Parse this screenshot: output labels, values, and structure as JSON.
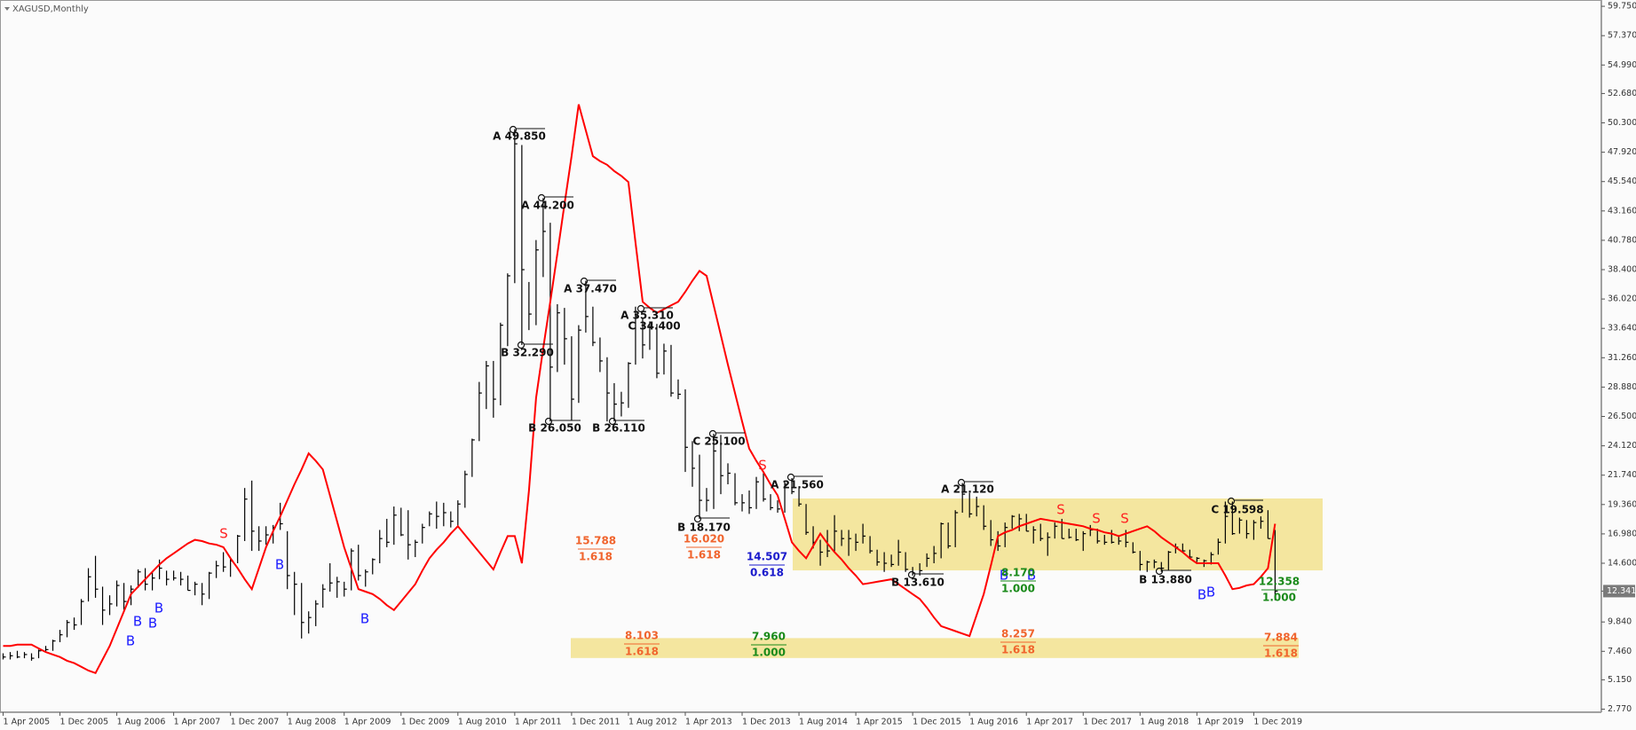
{
  "chart_data": {
    "type": "ohlc",
    "title": "XAGUSD,Monthly",
    "color": "#000000",
    "ylim": [
      2.52,
      60.26
    ],
    "grid": false,
    "yticks": [
      {
        "value": 59.75,
        "label": "59.750"
      },
      {
        "value": 57.37,
        "label": "57.370"
      },
      {
        "value": 54.99,
        "label": "54.990"
      },
      {
        "value": 52.68,
        "label": "52.680"
      },
      {
        "value": 50.3,
        "label": "50.300"
      },
      {
        "value": 47.92,
        "label": "47.920"
      },
      {
        "value": 45.54,
        "label": "45.540"
      },
      {
        "value": 43.16,
        "label": "43.160"
      },
      {
        "value": 40.78,
        "label": "40.780"
      },
      {
        "value": 38.4,
        "label": "38.400"
      },
      {
        "value": 36.02,
        "label": "36.020"
      },
      {
        "value": 33.64,
        "label": "33.640"
      },
      {
        "value": 31.26,
        "label": "31.260"
      },
      {
        "value": 28.88,
        "label": "28.880"
      },
      {
        "value": 26.5,
        "label": "26.500"
      },
      {
        "value": 24.12,
        "label": "24.120"
      },
      {
        "value": 21.74,
        "label": "21.740"
      },
      {
        "value": 19.36,
        "label": "19.360"
      },
      {
        "value": 16.98,
        "label": "16.980"
      },
      {
        "value": 14.6,
        "label": "14.600"
      },
      {
        "value": 9.84,
        "label": "9.840"
      },
      {
        "value": 7.46,
        "label": "7.460"
      },
      {
        "value": 5.15,
        "label": "5.150"
      },
      {
        "value": 2.77,
        "label": "2.770"
      }
    ],
    "last_price": 12.341,
    "categories": [
      "1 Apr 2005",
      null,
      null,
      null,
      null,
      null,
      null,
      null,
      "1 Dec 2005",
      null,
      null,
      null,
      null,
      null,
      null,
      null,
      "1 Aug 2006",
      null,
      null,
      null,
      null,
      null,
      null,
      null,
      "1 Apr 2007",
      null,
      null,
      null,
      null,
      null,
      null,
      null,
      "1 Dec 2007",
      null,
      null,
      null,
      null,
      null,
      null,
      null,
      "1 Aug 2008",
      null,
      null,
      null,
      null,
      null,
      null,
      null,
      "1 Apr 2009",
      null,
      null,
      null,
      null,
      null,
      null,
      null,
      "1 Dec 2009",
      null,
      null,
      null,
      null,
      null,
      null,
      null,
      "1 Aug 2010",
      null,
      null,
      null,
      null,
      null,
      null,
      null,
      "1 Apr 2011",
      null,
      null,
      null,
      null,
      null,
      null,
      null,
      "1 Dec 2011",
      null,
      null,
      null,
      null,
      null,
      null,
      null,
      "1 Aug 2012",
      null,
      null,
      null,
      null,
      null,
      null,
      null,
      "1 Apr 2013",
      null,
      null,
      null,
      null,
      null,
      null,
      null,
      "1 Dec 2013",
      null,
      null,
      null,
      null,
      null,
      null,
      null,
      "1 Aug 2014",
      null,
      null,
      null,
      null,
      null,
      null,
      null,
      "1 Apr 2015",
      null,
      null,
      null,
      null,
      null,
      null,
      null,
      "1 Dec 2015",
      null,
      null,
      null,
      null,
      null,
      null,
      null,
      "1 Aug 2016",
      null,
      null,
      null,
      null,
      null,
      null,
      null,
      "1 Apr 2017",
      null,
      null,
      null,
      null,
      null,
      null,
      null,
      "1 Dec 2017",
      null,
      null,
      null,
      null,
      null,
      null,
      null,
      "1 Aug 2018",
      null,
      null,
      null,
      null,
      null,
      null,
      null,
      "1 Apr 2019",
      null,
      null,
      null,
      null,
      null,
      null,
      null,
      "1 Dec 2019",
      null,
      null,
      null
    ],
    "high": [
      7.3,
      7.4,
      7.5,
      7.4,
      7.3,
      7.6,
      7.9,
      8.4,
      9.2,
      10.0,
      10.2,
      11.7,
      14.2,
      15.2,
      12.7,
      12.0,
      13.2,
      13.0,
      12.8,
      14.1,
      14.2,
      13.9,
      14.9,
      14.0,
      14.0,
      13.9,
      13.6,
      13.1,
      13.0,
      13.9,
      14.8,
      15.5,
      15.0,
      16.9,
      20.7,
      21.3,
      17.6,
      17.6,
      17.7,
      19.5,
      17.2,
      13.9,
      13.0,
      10.7,
      11.6,
      12.9,
      14.6,
      13.5,
      13.1,
      15.8,
      16.1,
      14.1,
      15.0,
      17.3,
      18.2,
      19.2,
      19.1,
      18.9,
      16.5,
      17.8,
      18.8,
      19.6,
      19.5,
      18.8,
      19.7,
      22.1,
      24.7,
      29.3,
      31.0,
      31.0,
      34.1,
      38.1,
      49.8,
      48.5,
      37.4,
      40.8,
      44.2,
      42.2,
      35.6,
      35.3,
      33.0,
      33.9,
      37.5,
      35.4,
      32.9,
      31.3,
      29.2,
      28.5,
      30.9,
      35.4,
      34.5,
      34.2,
      34.0,
      32.4,
      32.3,
      29.5,
      28.7,
      24.5,
      23.4,
      20.7,
      25.1,
      25.0,
      22.7,
      21.9,
      20.2,
      20.5,
      21.6,
      21.9,
      20.2,
      19.7,
      21.2,
      21.5,
      20.7,
      19.4,
      17.6,
      16.5,
      17.3,
      18.5,
      17.3,
      17.3,
      17.0,
      17.8,
      16.8,
      15.7,
      15.5,
      15.3,
      16.5,
      15.5,
      14.3,
      14.6,
      15.4,
      16.0,
      17.9,
      17.9,
      18.9,
      21.1,
      20.3,
      20.0,
      19.3,
      18.1,
      17.2,
      17.9,
      18.5,
      18.6,
      18.6,
      17.6,
      17.8,
      17.1,
      17.9,
      18.2,
      17.4,
      17.4,
      17.2,
      17.7,
      17.4,
      16.9,
      17.3,
      16.8,
      17.3,
      16.3,
      15.6,
      14.8,
      14.9,
      14.7,
      15.6,
      16.2,
      16.2,
      15.7,
      15.1,
      14.9,
      15.5,
      16.6,
      19.6,
      19.6,
      18.3,
      18.1,
      18.1,
      18.4,
      18.9,
      17.3
    ],
    "low": [
      6.8,
      6.8,
      6.9,
      6.9,
      6.7,
      6.9,
      7.4,
      7.5,
      8.2,
      8.6,
      9.2,
      9.6,
      11.5,
      11.8,
      9.6,
      10.4,
      11.1,
      10.8,
      11.2,
      12.6,
      12.4,
      12.4,
      13.3,
      12.8,
      13.2,
      12.8,
      12.4,
      12.0,
      11.2,
      11.7,
      13.4,
      13.9,
      13.5,
      14.6,
      16.4,
      15.6,
      15.6,
      16.1,
      16.2,
      17.3,
      12.5,
      10.4,
      8.5,
      8.9,
      9.5,
      11.0,
      12.3,
      11.8,
      11.9,
      12.4,
      13.2,
      12.7,
      13.7,
      14.6,
      15.9,
      16.1,
      16.8,
      14.9,
      15.1,
      16.2,
      17.6,
      17.4,
      17.6,
      17.5,
      17.6,
      19.1,
      21.6,
      24.5,
      27.1,
      26.4,
      27.4,
      32.2,
      37.3,
      32.3,
      33.5,
      33.9,
      37.8,
      26.1,
      30.1,
      30.7,
      26.2,
      27.6,
      33.3,
      32.2,
      30.1,
      26.1,
      26.1,
      26.5,
      27.2,
      30.7,
      31.2,
      31.9,
      29.6,
      29.9,
      28.1,
      27.9,
      22.0,
      20.8,
      18.2,
      18.8,
      19.0,
      20.2,
      21.0,
      19.3,
      18.8,
      18.6,
      19.0,
      19.6,
      18.9,
      18.7,
      18.7,
      20.2,
      19.2,
      16.9,
      15.8,
      14.4,
      15.1,
      15.5,
      16.0,
      15.2,
      15.6,
      16.2,
      15.4,
      14.4,
      13.9,
      14.3,
      14.4,
      13.9,
      13.6,
      13.6,
      14.3,
      14.6,
      15.0,
      15.8,
      15.9,
      18.7,
      18.3,
      18.4,
      17.3,
      16.0,
      15.6,
      15.9,
      17.4,
      17.2,
      17.2,
      16.2,
      16.4,
      15.2,
      16.6,
      16.6,
      16.6,
      16.4,
      15.6,
      16.8,
      16.2,
      16.1,
      16.2,
      16.1,
      15.9,
      15.4,
      14.0,
      13.9,
      14.2,
      13.9,
      14.0,
      15.4,
      15.5,
      15.0,
      14.7,
      14.3,
      14.5,
      15.3,
      16.2,
      16.9,
      17.0,
      16.6,
      16.5,
      17.4,
      16.6,
      11.6
    ],
    "close": [
      7.0,
      7.1,
      7.0,
      7.2,
      6.9,
      7.5,
      7.6,
      8.3,
      8.8,
      9.8,
      9.6,
      11.5,
      13.5,
      12.5,
      10.8,
      11.3,
      12.8,
      11.5,
      12.5,
      13.9,
      12.9,
      13.4,
      14.2,
      13.3,
      13.4,
      13.3,
      12.4,
      12.9,
      12.1,
      13.8,
      14.4,
      14.3,
      14.8,
      16.8,
      19.8,
      17.2,
      16.4,
      16.9,
      17.5,
      17.8,
      13.6,
      12.9,
      9.8,
      10.2,
      11.3,
      12.5,
      13.0,
      13.1,
      12.5,
      15.6,
      13.6,
      13.9,
      14.9,
      16.6,
      16.3,
      18.5,
      16.9,
      16.1,
      16.3,
      17.5,
      18.6,
      18.4,
      18.7,
      18.0,
      19.4,
      21.8,
      24.6,
      28.4,
      30.6,
      27.9,
      33.9,
      37.9,
      48.6,
      38.4,
      34.8,
      40.0,
      41.5,
      30.5,
      34.9,
      32.8,
      27.9,
      33.5,
      34.6,
      32.5,
      31.0,
      28.4,
      27.5,
      27.6,
      30.8,
      34.6,
      32.3,
      33.7,
      30.0,
      31.8,
      28.4,
      28.3,
      24.0,
      22.3,
      19.7,
      19.7,
      23.7,
      21.7,
      21.9,
      19.5,
      19.5,
      19.1,
      21.2,
      19.8,
      19.1,
      19.0,
      21.0,
      20.4,
      19.4,
      17.1,
      16.3,
      15.5,
      15.6,
      17.2,
      16.6,
      16.6,
      16.3,
      16.8,
      15.6,
      14.7,
      14.6,
      14.5,
      15.5,
      14.1,
      13.8,
      14.0,
      15.0,
      15.4,
      17.8,
      16.0,
      18.7,
      20.2,
      18.6,
      19.2,
      17.6,
      16.5,
      16.0,
      17.5,
      18.4,
      18.2,
      17.2,
      17.3,
      16.6,
      16.7,
      17.6,
      16.6,
      16.7,
      16.5,
      17.0,
      17.3,
      16.4,
      16.3,
      16.3,
      16.4,
      16.3,
      15.5,
      14.5,
      14.7,
      14.7,
      14.2,
      15.5,
      15.9,
      15.6,
      15.1,
      15.0,
      14.8,
      15.3,
      16.3,
      18.4,
      17.0,
      18.1,
      17.0,
      17.9,
      18.0,
      16.6,
      12.341
    ],
    "overlay": {
      "color": "#ff0000",
      "values": [
        7.9,
        7.9,
        8.0,
        8.0,
        8.0,
        7.7,
        7.4,
        7.2,
        7.0,
        6.7,
        6.5,
        6.2,
        5.9,
        5.7,
        6.8,
        7.9,
        9.3,
        10.7,
        12.1,
        12.7,
        13.3,
        13.9,
        14.5,
        15.0,
        15.4,
        15.8,
        16.2,
        16.5,
        16.4,
        16.2,
        16.1,
        15.9,
        15.0,
        14.2,
        13.3,
        12.5,
        14.2,
        15.9,
        17.2,
        18.4,
        19.7,
        21.0,
        22.2,
        23.5,
        22.9,
        22.2,
        20.1,
        18.0,
        15.9,
        14.2,
        12.5,
        12.3,
        12.1,
        11.7,
        11.2,
        10.8,
        11.5,
        12.2,
        12.9,
        14.0,
        15.0,
        15.7,
        16.3,
        17.0,
        17.6,
        16.9,
        16.2,
        15.5,
        14.8,
        14.1,
        15.5,
        16.8,
        16.8,
        14.6,
        20.5,
        28.0,
        32.0,
        35.8,
        39.7,
        43.7,
        47.6,
        51.8,
        49.7,
        47.6,
        47.2,
        46.9,
        46.4,
        46.0,
        45.5,
        40.6,
        35.8,
        35.3,
        34.9,
        35.2,
        35.5,
        35.8,
        36.6,
        37.5,
        38.3,
        37.9,
        35.5,
        33.1,
        30.7,
        28.4,
        26.1,
        23.9,
        22.9,
        22.0,
        21.0,
        20.1,
        18.2,
        16.3,
        15.6,
        15.0,
        16.0,
        17.0,
        16.2,
        15.5,
        14.9,
        14.2,
        13.6,
        12.9,
        13.0,
        13.1,
        13.2,
        13.3,
        12.9,
        12.5,
        12.1,
        11.7,
        11.0,
        10.2,
        9.5,
        9.3,
        9.1,
        8.9,
        8.7,
        10.4,
        12.1,
        14.4,
        16.8,
        17.1,
        17.3,
        17.6,
        17.8,
        18.0,
        18.2,
        18.1,
        18.0,
        17.9,
        17.8,
        17.7,
        17.6,
        17.4,
        17.3,
        17.1,
        17.0,
        16.8,
        17.0,
        17.2,
        17.4,
        17.6,
        17.2,
        16.7,
        16.3,
        15.9,
        15.5,
        15.0,
        14.6,
        14.6,
        14.6,
        14.6,
        13.6,
        12.5,
        12.6,
        12.8,
        12.9,
        13.5,
        14.2,
        17.8
      ]
    },
    "zones": [
      {
        "low": 14.02,
        "high": 19.85,
        "color": "#f2e28e"
      },
      {
        "low": 6.92,
        "high": 8.53,
        "color": "#f2e28e"
      }
    ],
    "wave_labels": [
      "A 49.850",
      "B 32.290",
      "A 44.200",
      "B 26.050",
      "A 37.470",
      "B 26.110",
      "A 35.310",
      "C 34.400",
      "C 25.100",
      "B 18.170",
      "A 21.560",
      "A 21.120",
      "B 13.610",
      "B 13.880",
      "C 19.598"
    ],
    "signals": [
      "B",
      "B",
      "B",
      "B",
      "S",
      "B",
      "B",
      "S",
      "S",
      "S",
      "S",
      "B",
      "B",
      "B",
      "B"
    ],
    "signal_colors": {
      "B": "#1a1aff",
      "S": "#ff2020"
    },
    "projections": [
      {
        "level": 15.788,
        "ratio": 1.618,
        "color": "#f0642d"
      },
      {
        "level": {
          "value": 16.02,
          "label": "16.020"
        },
        "ratio": 1.618,
        "color": "#f0642d"
      },
      {
        "level": 14.507,
        "ratio": 0.618,
        "color": "#1a1acc"
      },
      {
        "level": 8.103,
        "ratio": 1.618,
        "color": "#f0642d"
      },
      {
        "level": {
          "value": 7.96,
          "label": "7.960"
        },
        "ratio": {
          "value": 1,
          "label": "1.000"
        },
        "color": "#1a8a1a"
      },
      {
        "level": 8.257,
        "ratio": 1.618,
        "color": "#f0642d"
      },
      {
        "level": 7.884,
        "ratio": 1.618,
        "color": "#f0642d"
      },
      {
        "level": 12.358,
        "ratio": {
          "value": 1,
          "label": "1.000"
        },
        "color": "#1a8a1a"
      },
      {
        "level": {
          "value": 8.17,
          "label": "8.170"
        },
        "ratio": {
          "value": 1,
          "label": "1.000"
        },
        "color": "#1a8a1a"
      }
    ]
  }
}
